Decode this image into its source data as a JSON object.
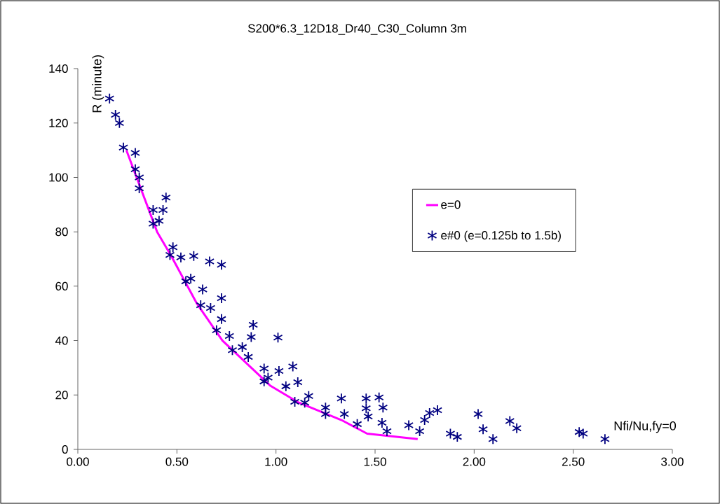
{
  "chart_data": {
    "type": "scatter",
    "title": "S200*6.3_12D18_Dr40_C30_Column 3m",
    "xlabel": "Nfi/Nu,fy=0",
    "ylabel": "R (minute)",
    "xlim": [
      0,
      3
    ],
    "ylim": [
      0,
      140
    ],
    "xticks": [
      {
        "value": 0,
        "label": "0.00"
      },
      {
        "value": 0.5,
        "label": "0.50"
      },
      {
        "value": 1,
        "label": "1.00"
      },
      {
        "value": 1.5,
        "label": "1.50"
      },
      {
        "value": 2,
        "label": "2.00"
      },
      {
        "value": 2.5,
        "label": "2.50"
      },
      {
        "value": 3,
        "label": "3.00"
      }
    ],
    "yticks": [
      0,
      20,
      40,
      60,
      80,
      100,
      120,
      140
    ],
    "grid": false,
    "legend": "right",
    "series": [
      {
        "name": "e=0",
        "type": "line",
        "color": "#ff00ff",
        "marker": "none",
        "x": [
          0.245,
          0.4,
          0.47,
          0.6,
          0.73,
          0.97,
          1.115,
          1.33,
          1.46,
          1.715
        ],
        "values": [
          110,
          80,
          71.3,
          53.7,
          40,
          23.5,
          17.2,
          10.8,
          5.8,
          3.8
        ]
      },
      {
        "name": "e#0 (e=0.125b to 1.5b)",
        "color": "#000080",
        "marker": "cross",
        "x": [
          0.16,
          0.19,
          0.21,
          0.23,
          0.29,
          0.29,
          0.31,
          0.31,
          0.445,
          0.38,
          0.43,
          0.38,
          0.41,
          0.48,
          0.465,
          0.52,
          0.585,
          0.665,
          0.725,
          0.545,
          0.57,
          0.63,
          0.725,
          0.62,
          0.67,
          0.725,
          0.885,
          0.7,
          0.765,
          0.875,
          1.01,
          0.83,
          0.78,
          0.86,
          0.94,
          1.085,
          1.015,
          0.96,
          0.94,
          1.11,
          1.05,
          1.165,
          1.095,
          1.145,
          1.33,
          1.25,
          1.25,
          1.345,
          1.455,
          1.52,
          1.455,
          1.465,
          1.54,
          1.41,
          1.535,
          1.56,
          1.67,
          1.725,
          1.75,
          1.775,
          1.815,
          1.88,
          1.915,
          2.02,
          2.045,
          2.095,
          2.18,
          2.215,
          2.53,
          2.55,
          2.66
        ],
        "values": [
          129,
          123,
          120,
          111,
          109,
          103,
          100,
          96,
          92.6,
          88,
          88,
          83,
          84,
          74.3,
          71.5,
          70.6,
          71.1,
          69.1,
          67.9,
          61.8,
          62.8,
          58.8,
          55.6,
          53,
          52,
          47.9,
          45.8,
          43.8,
          41.7,
          41.3,
          41.1,
          37.6,
          36.5,
          34,
          29.7,
          30.5,
          28.8,
          26.4,
          25,
          24.7,
          23.2,
          19.6,
          17.5,
          17.2,
          18.7,
          15.4,
          13,
          13,
          18.7,
          19.1,
          15.1,
          12.1,
          15.4,
          9.3,
          9.8,
          6.7,
          8.9,
          6.7,
          10.8,
          13.4,
          14.4,
          5.8,
          4.6,
          13,
          7.4,
          3.8,
          10.4,
          7.8,
          6.4,
          5.8,
          3.8
        ]
      }
    ]
  }
}
